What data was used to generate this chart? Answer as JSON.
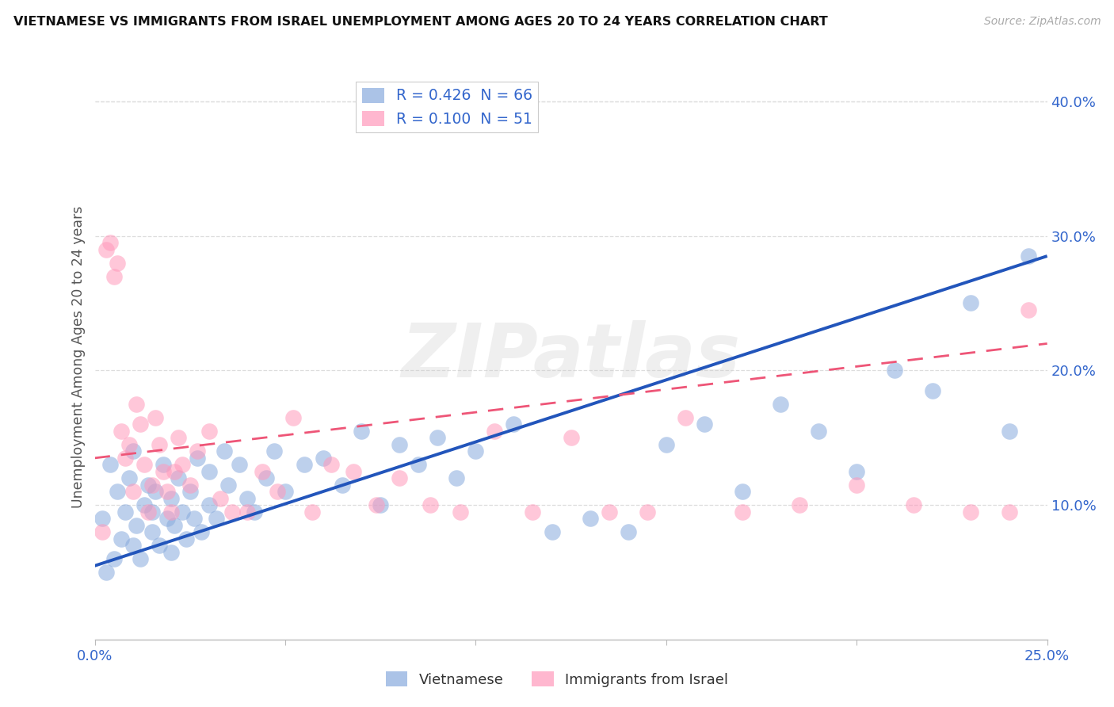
{
  "title": "VIETNAMESE VS IMMIGRANTS FROM ISRAEL UNEMPLOYMENT AMONG AGES 20 TO 24 YEARS CORRELATION CHART",
  "source": "Source: ZipAtlas.com",
  "ylabel": "Unemployment Among Ages 20 to 24 years",
  "xlim": [
    0.0,
    0.25
  ],
  "ylim": [
    0.0,
    0.42
  ],
  "xtick_positions": [
    0.0,
    0.05,
    0.1,
    0.15,
    0.2,
    0.25
  ],
  "xtick_labels": [
    "0.0%",
    "",
    "",
    "",
    "",
    "25.0%"
  ],
  "ytick_positions": [
    0.1,
    0.2,
    0.3,
    0.4
  ],
  "ytick_labels": [
    "10.0%",
    "20.0%",
    "30.0%",
    "40.0%"
  ],
  "vietnamese_color": "#88AADD",
  "israel_color": "#FF99BB",
  "vietnamese_line_color": "#2255BB",
  "israel_line_color": "#EE5577",
  "viet_line_x": [
    0.0,
    0.25
  ],
  "viet_line_y": [
    0.055,
    0.285
  ],
  "isr_line_x": [
    0.0,
    0.25
  ],
  "isr_line_y": [
    0.135,
    0.22
  ],
  "watermark": "ZIPatlas",
  "background_color": "#FFFFFF",
  "grid_color": "#DDDDDD",
  "title_color": "#111111",
  "tick_label_color": "#3366CC",
  "axis_label_color": "#555555",
  "viet_x": [
    0.002,
    0.003,
    0.004,
    0.005,
    0.006,
    0.007,
    0.008,
    0.009,
    0.01,
    0.01,
    0.011,
    0.012,
    0.013,
    0.014,
    0.015,
    0.015,
    0.016,
    0.017,
    0.018,
    0.019,
    0.02,
    0.02,
    0.021,
    0.022,
    0.023,
    0.024,
    0.025,
    0.026,
    0.027,
    0.028,
    0.03,
    0.03,
    0.032,
    0.034,
    0.035,
    0.038,
    0.04,
    0.042,
    0.045,
    0.047,
    0.05,
    0.055,
    0.06,
    0.065,
    0.07,
    0.075,
    0.08,
    0.085,
    0.09,
    0.095,
    0.1,
    0.11,
    0.12,
    0.13,
    0.14,
    0.15,
    0.16,
    0.17,
    0.18,
    0.19,
    0.2,
    0.21,
    0.22,
    0.23,
    0.24,
    0.245
  ],
  "viet_y": [
    0.09,
    0.05,
    0.13,
    0.06,
    0.11,
    0.075,
    0.095,
    0.12,
    0.14,
    0.07,
    0.085,
    0.06,
    0.1,
    0.115,
    0.08,
    0.095,
    0.11,
    0.07,
    0.13,
    0.09,
    0.065,
    0.105,
    0.085,
    0.12,
    0.095,
    0.075,
    0.11,
    0.09,
    0.135,
    0.08,
    0.1,
    0.125,
    0.09,
    0.14,
    0.115,
    0.13,
    0.105,
    0.095,
    0.12,
    0.14,
    0.11,
    0.13,
    0.135,
    0.115,
    0.155,
    0.1,
    0.145,
    0.13,
    0.15,
    0.12,
    0.14,
    0.16,
    0.08,
    0.09,
    0.08,
    0.145,
    0.16,
    0.11,
    0.175,
    0.155,
    0.125,
    0.2,
    0.185,
    0.25,
    0.155,
    0.285
  ],
  "isr_x": [
    0.002,
    0.003,
    0.004,
    0.005,
    0.006,
    0.007,
    0.008,
    0.009,
    0.01,
    0.011,
    0.012,
    0.013,
    0.014,
    0.015,
    0.016,
    0.017,
    0.018,
    0.019,
    0.02,
    0.021,
    0.022,
    0.023,
    0.025,
    0.027,
    0.03,
    0.033,
    0.036,
    0.04,
    0.044,
    0.048,
    0.052,
    0.057,
    0.062,
    0.068,
    0.074,
    0.08,
    0.088,
    0.096,
    0.105,
    0.115,
    0.125,
    0.135,
    0.145,
    0.155,
    0.17,
    0.185,
    0.2,
    0.215,
    0.23,
    0.24,
    0.245
  ],
  "isr_y": [
    0.08,
    0.29,
    0.295,
    0.27,
    0.28,
    0.155,
    0.135,
    0.145,
    0.11,
    0.175,
    0.16,
    0.13,
    0.095,
    0.115,
    0.165,
    0.145,
    0.125,
    0.11,
    0.095,
    0.125,
    0.15,
    0.13,
    0.115,
    0.14,
    0.155,
    0.105,
    0.095,
    0.095,
    0.125,
    0.11,
    0.165,
    0.095,
    0.13,
    0.125,
    0.1,
    0.12,
    0.1,
    0.095,
    0.155,
    0.095,
    0.15,
    0.095,
    0.095,
    0.165,
    0.095,
    0.1,
    0.115,
    0.1,
    0.095,
    0.095,
    0.245
  ]
}
